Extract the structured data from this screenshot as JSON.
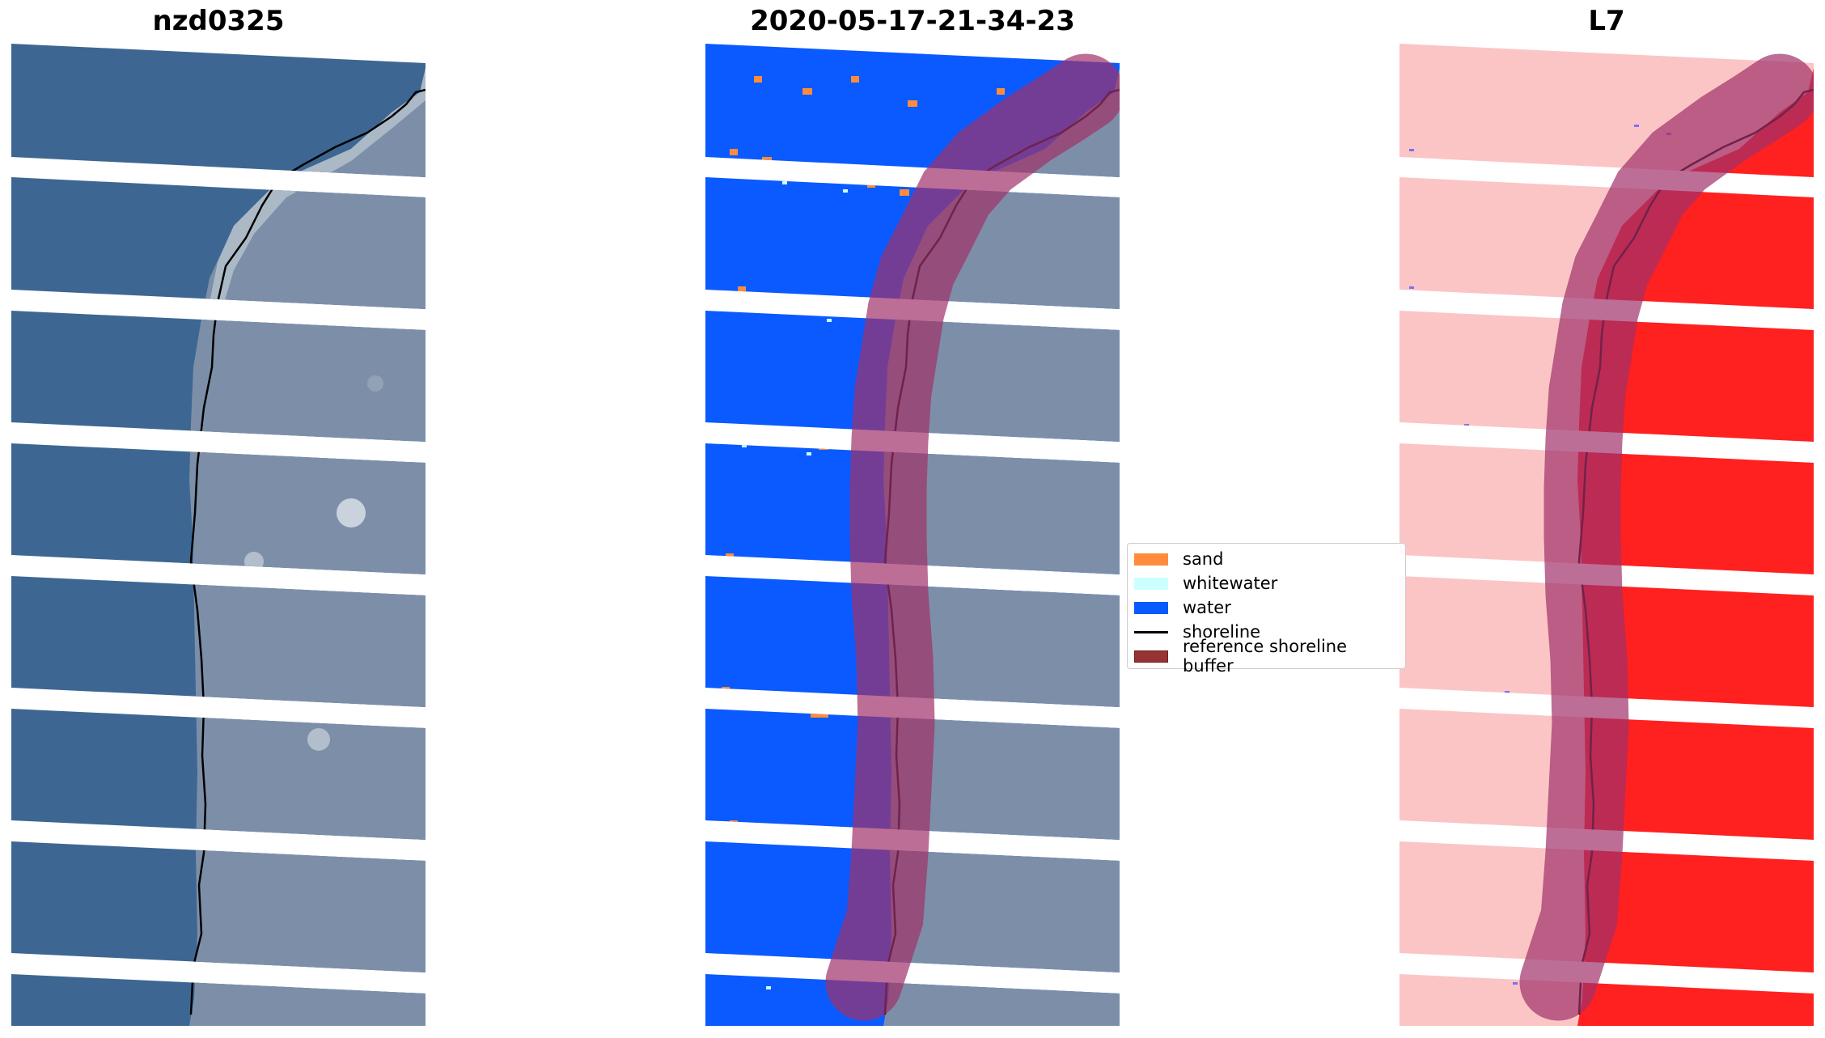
{
  "panels": [
    {
      "title": "nzd0325"
    },
    {
      "title": "2020-05-17-21-34-23"
    },
    {
      "title": "L7"
    }
  ],
  "legend": {
    "items": [
      {
        "label": "sand",
        "color": "#ff8c3c"
      },
      {
        "label": "whitewater",
        "color": "#ccffff"
      },
      {
        "label": "water",
        "color": "#0a5aff"
      },
      {
        "label": "shoreline",
        "color": "#000000"
      },
      {
        "label": "reference shoreline buffer",
        "color": "#993333"
      }
    ]
  },
  "colors": {
    "ocean_rgb": "#3d6792",
    "land_rgb": "#7d8fa8",
    "sand_rgb": "#b7c3cd",
    "class_water": "#0a5aff",
    "class_sand": "#ff8c3c",
    "class_whitewater": "#ccffff",
    "index_low": "#fbc5c5",
    "index_high": "#ff2020",
    "buffer": "#a0306a"
  }
}
